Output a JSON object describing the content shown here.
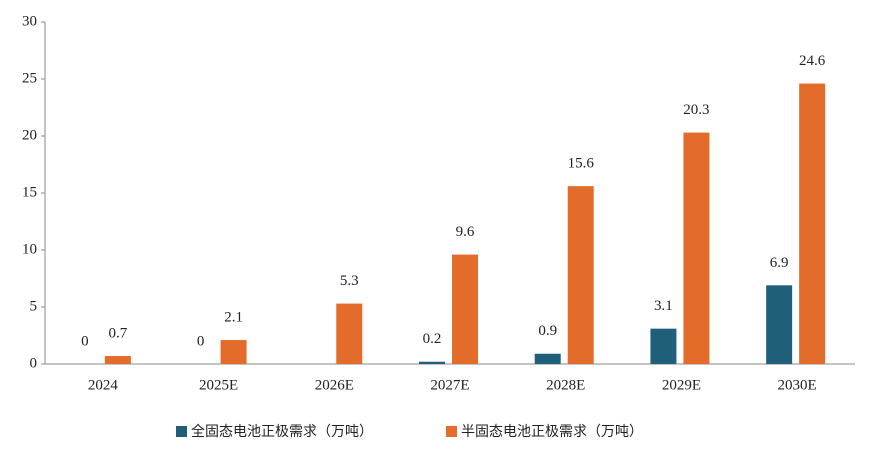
{
  "chart_data": {
    "type": "bar",
    "categories": [
      "2024",
      "2025E",
      "2026E",
      "2027E",
      "2028E",
      "2029E",
      "2030E"
    ],
    "series": [
      {
        "name": "全固态电池正极需求（万吨）",
        "color": "#1f5f7a",
        "values": [
          0,
          0,
          null,
          0.2,
          0.9,
          3.1,
          6.9
        ]
      },
      {
        "name": "半固态电池正极需求（万吨）",
        "color": "#e46c2a",
        "values": [
          0.7,
          2.1,
          5.3,
          9.6,
          15.6,
          20.3,
          24.6
        ]
      }
    ],
    "ylim": [
      0,
      30
    ],
    "yticks": [
      0,
      5,
      10,
      15,
      20,
      25,
      30
    ],
    "grid": false
  }
}
